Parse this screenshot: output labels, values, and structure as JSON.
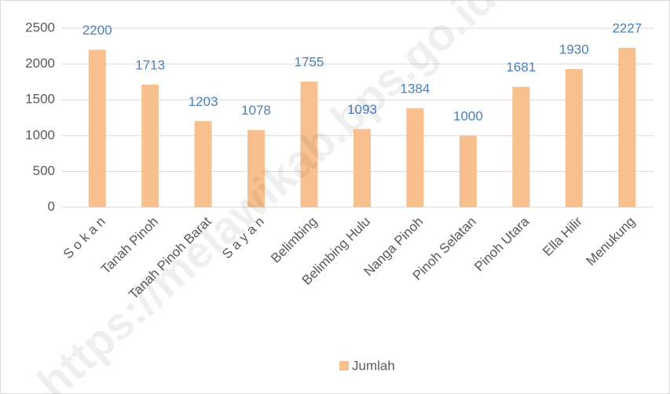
{
  "chart_data": {
    "type": "bar",
    "categories": [
      "S o k a n",
      "Tanah Pinoh",
      "Tanah Pinoh Barat",
      "S a y a n",
      "Belimbing",
      "Belimbing Hulu",
      "Nanga Pinoh",
      "Pinoh Selatan",
      "Pinoh Utara",
      "Ella Hilir",
      "Menukung"
    ],
    "series": [
      {
        "name": "Jumlah",
        "color": "#f9c08f",
        "values": [
          2200,
          1713,
          1203,
          1078,
          1755,
          1093,
          1384,
          1000,
          1681,
          1930,
          2227
        ]
      }
    ],
    "ylim": [
      0,
      2500
    ],
    "yticks": [
      0,
      500,
      1000,
      1500,
      2000,
      2500
    ],
    "grid": true,
    "legend": "bottom",
    "watermark": "https://melawikab.bps.go.id"
  }
}
